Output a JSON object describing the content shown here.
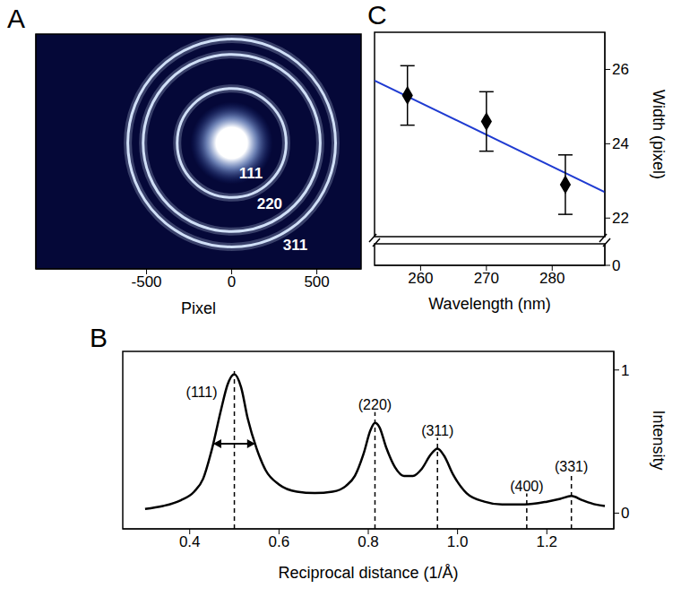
{
  "chart_data": [
    {
      "type": "image",
      "panel": "A",
      "xlabel": "Pixel",
      "xlim": [
        -1150,
        760
      ],
      "xticks": [
        -500,
        0,
        500
      ],
      "ylim": [
        -740,
        640
      ],
      "yticks": [
        -500,
        0,
        500
      ],
      "tick_labels": "x",
      "center": [
        0,
        0
      ],
      "color": "#d8e8ff",
      "rings": {
        "labels": [
          "111",
          "220",
          "311"
        ],
        "radius": [
          320,
          520,
          610
        ]
      }
    },
    {
      "type": "line",
      "panel": "B",
      "xlabel": "Reciprocal distance (1/Å)",
      "ylabel": "Intensity",
      "xlim": [
        0.25,
        1.35
      ],
      "xticks": [
        0.4,
        0.6,
        0.8,
        {
          "value": 1,
          "label": "1.0"
        },
        1.2
      ],
      "ylim": [
        -0.11,
        1.13
      ],
      "yticks": [
        0,
        1
      ],
      "color": "#000000",
      "x": [
        0.3,
        0.34,
        0.38,
        0.41,
        0.43,
        0.45,
        0.47,
        0.485,
        0.5,
        0.515,
        0.53,
        0.55,
        0.57,
        0.6,
        0.64,
        0.68,
        0.72,
        0.75,
        0.77,
        0.79,
        0.805,
        0.815,
        0.825,
        0.84,
        0.86,
        0.88,
        0.9,
        0.92,
        0.94,
        0.955,
        0.97,
        0.99,
        1.02,
        1.06,
        1.1,
        1.15,
        1.2,
        1.23,
        1.255,
        1.28,
        1.31,
        1.33
      ],
      "values": [
        0.03,
        0.05,
        0.09,
        0.15,
        0.24,
        0.45,
        0.72,
        0.9,
        0.97,
        0.88,
        0.66,
        0.45,
        0.3,
        0.2,
        0.15,
        0.14,
        0.15,
        0.19,
        0.26,
        0.42,
        0.58,
        0.63,
        0.6,
        0.46,
        0.32,
        0.26,
        0.26,
        0.31,
        0.41,
        0.45,
        0.4,
        0.27,
        0.14,
        0.08,
        0.06,
        0.06,
        0.08,
        0.1,
        0.12,
        0.09,
        0.06,
        0.05
      ],
      "peaks": {
        "labels": [
          "(111)",
          "(220)",
          "(311)",
          "(400)",
          "(331)"
        ],
        "x": [
          0.5,
          0.815,
          0.955,
          1.155,
          1.255
        ],
        "line_style": "dashed"
      }
    },
    {
      "type": "scatter",
      "panel": "C",
      "xlabel": "Wavelength (nm)",
      "ylabel": "Width (pixel)",
      "xlim": [
        253,
        288
      ],
      "xticks": [
        260,
        270,
        280
      ],
      "ylim": [
        21.5,
        27
      ],
      "yticks": [
        22,
        24,
        26
      ],
      "ylim_lower": [
        0,
        1
      ],
      "yticks_lower": [
        0
      ],
      "series": [
        {
          "type": "scatter",
          "marker": "diamond",
          "color": "#000000",
          "x": [
            258,
            270,
            282
          ],
          "values": [
            25.3,
            24.6,
            22.9
          ],
          "error": [
            0.8,
            0.8,
            0.8
          ]
        },
        {
          "type": "line",
          "color": "#1f3bd1",
          "x": [
            253,
            288
          ],
          "values": [
            25.7,
            22.7
          ]
        }
      ]
    }
  ]
}
